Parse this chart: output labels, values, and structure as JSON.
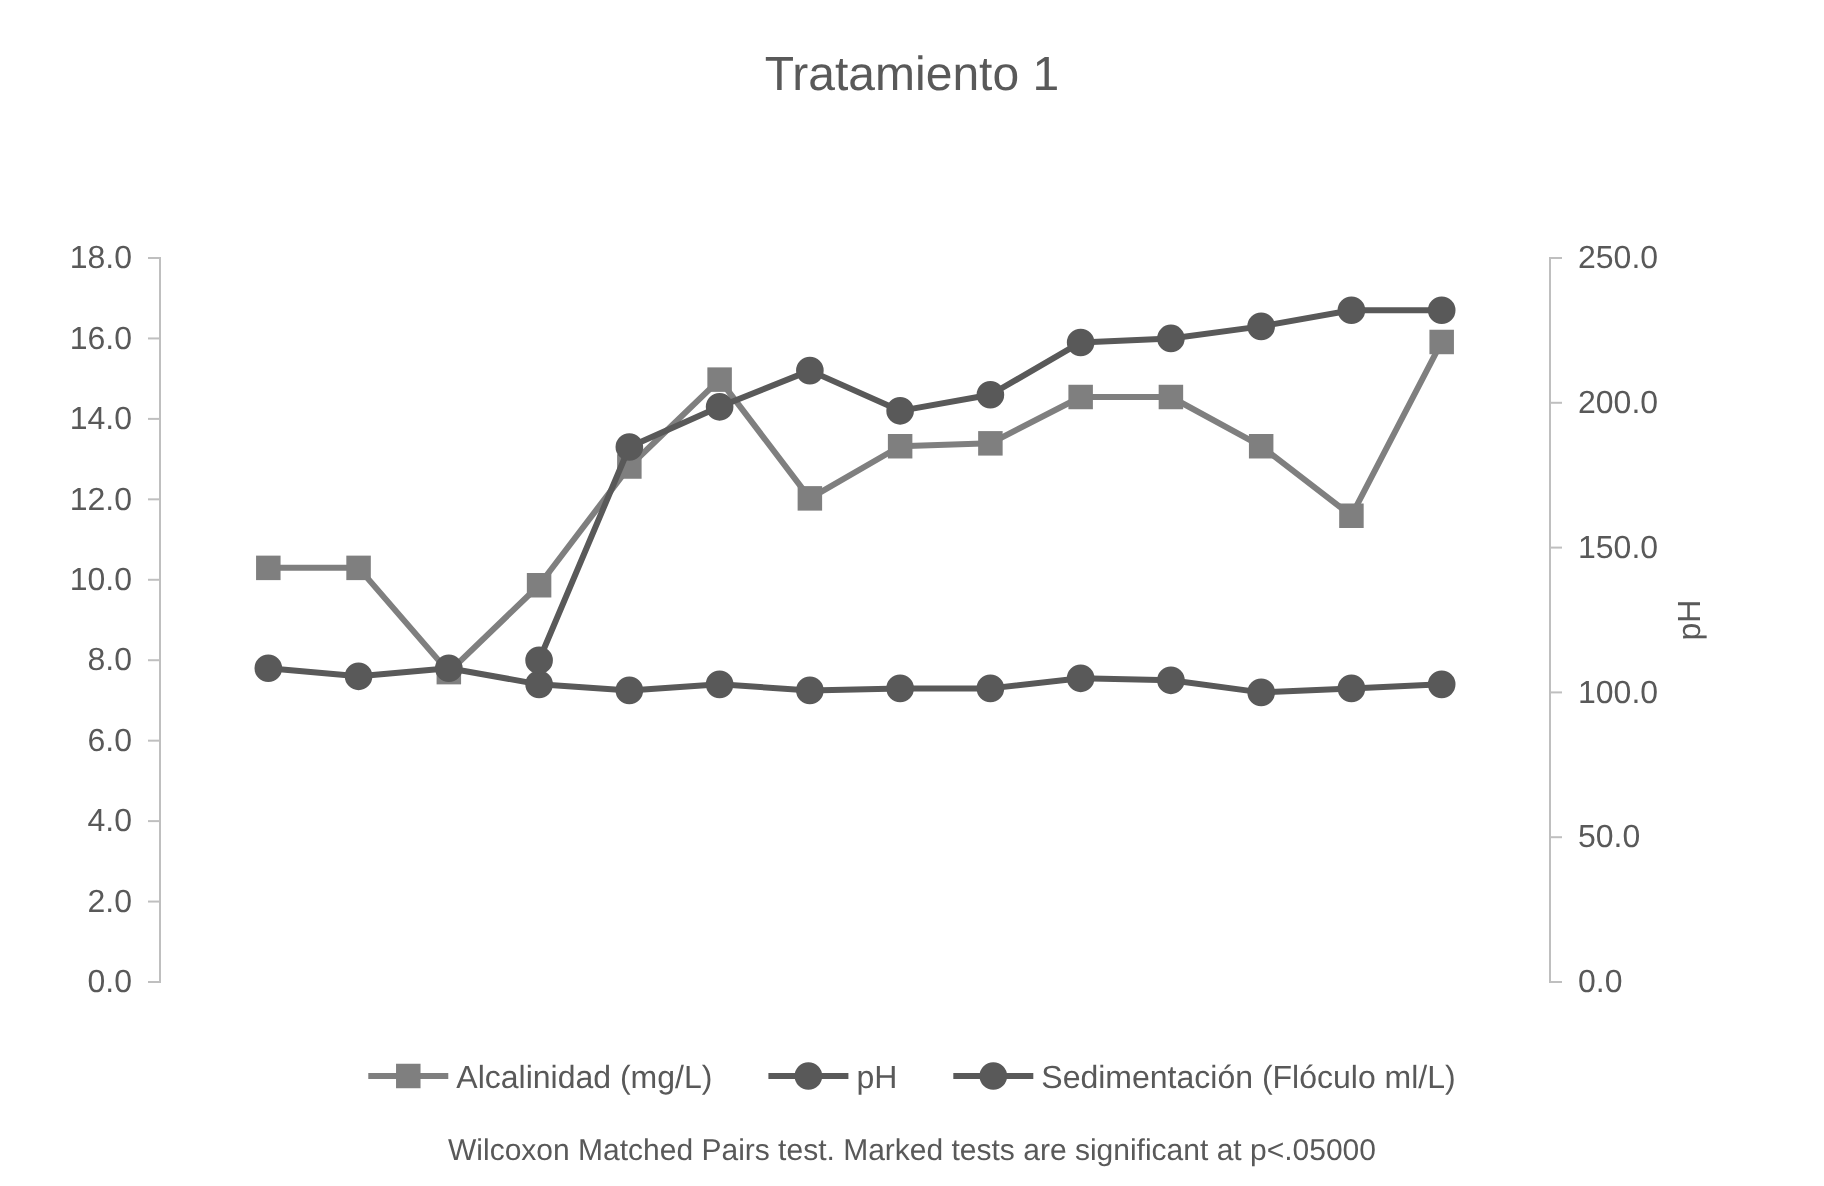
{
  "chart_data": {
    "type": "line",
    "title": "Tratamiento 1",
    "y2label": "pH",
    "categories": [
      null,
      null,
      null,
      null,
      null,
      null,
      null,
      null,
      null,
      null,
      null,
      null,
      null,
      null
    ],
    "series": [
      {
        "name": "Alcalinidad (mg/L)",
        "color": "#7f7f7f",
        "marker": "square",
        "axis": "y2",
        "values": [
          143,
          143,
          107,
          137,
          178,
          208,
          167,
          185,
          186,
          202,
          202,
          185,
          161,
          221
        ]
      },
      {
        "name": "pH",
        "color": "#595959",
        "marker": "circle",
        "values": [
          7.8,
          7.6,
          7.8,
          7.4,
          7.25,
          7.4,
          7.25,
          7.3,
          7.3,
          7.55,
          7.5,
          7.2,
          7.3,
          7.4
        ]
      },
      {
        "name": "Sedimentación (Flóculo ml/L)",
        "color": "#595959",
        "marker": "circle",
        "values": [
          null,
          null,
          null,
          8.0,
          13.3,
          14.3,
          15.2,
          14.2,
          14.6,
          15.9,
          16.0,
          16.3,
          16.7,
          16.7
        ]
      }
    ],
    "ylim": [
      0,
      18
    ],
    "yticks": [
      {
        "value": 0,
        "label": "0.0"
      },
      {
        "value": 2,
        "label": "2.0"
      },
      {
        "value": 4,
        "label": "4.0"
      },
      {
        "value": 6,
        "label": "6.0"
      },
      {
        "value": 8,
        "label": "8.0"
      },
      {
        "value": 10,
        "label": "10.0"
      },
      {
        "value": 12,
        "label": "12.0"
      },
      {
        "value": 14,
        "label": "14.0"
      },
      {
        "value": 16,
        "label": "16.0"
      },
      {
        "value": 18,
        "label": "18.0"
      }
    ],
    "y2lim": [
      0,
      250
    ],
    "y2ticks": [
      {
        "value": 0,
        "label": "0.0"
      },
      {
        "value": 50,
        "label": "50.0"
      },
      {
        "value": 100,
        "label": "100.0"
      },
      {
        "value": 150,
        "label": "150.0"
      },
      {
        "value": 200,
        "label": "200.0"
      },
      {
        "value": 250,
        "label": "250.0"
      }
    ],
    "legend": "bottom",
    "grid": false,
    "line_style": "solid",
    "annotations": [
      "Wilcoxon Matched Pairs test. Marked tests are significant at p<.05000"
    ]
  }
}
